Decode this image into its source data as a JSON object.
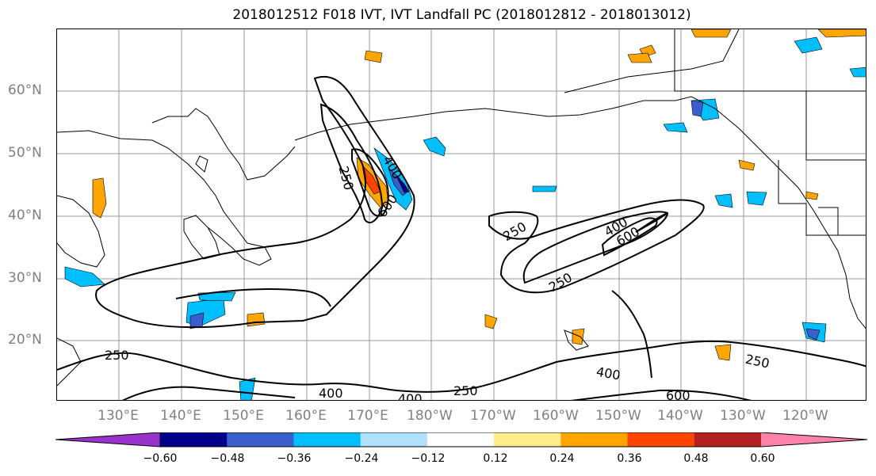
{
  "title": "2018012512 F018 IVT, IVT Landfall PC (2018012812 - 2018013012)",
  "axes": {
    "lat_labels": [
      "60°N",
      "50°N",
      "40°N",
      "30°N",
      "20°N"
    ],
    "lon_labels": [
      "130°E",
      "140°E",
      "150°E",
      "160°E",
      "170°E",
      "180°W",
      "170°W",
      "160°W",
      "150°W",
      "140°W",
      "130°W",
      "120°W"
    ]
  },
  "contour_labels": [
    "250",
    "400",
    "600"
  ],
  "colorbar": {
    "ticks": [
      "−0.60",
      "−0.48",
      "−0.36",
      "−0.24",
      "−0.12",
      "0.12",
      "0.24",
      "0.36",
      "0.48",
      "0.60"
    ],
    "colors": [
      "#9932CC",
      "#00008B",
      "#3A5FCD",
      "#00BFFF",
      "#B0E2FF",
      "#FFFFFF",
      "#FFEC8B",
      "#FFA500",
      "#FF4500",
      "#B22222",
      "#FF82AB"
    ]
  }
}
